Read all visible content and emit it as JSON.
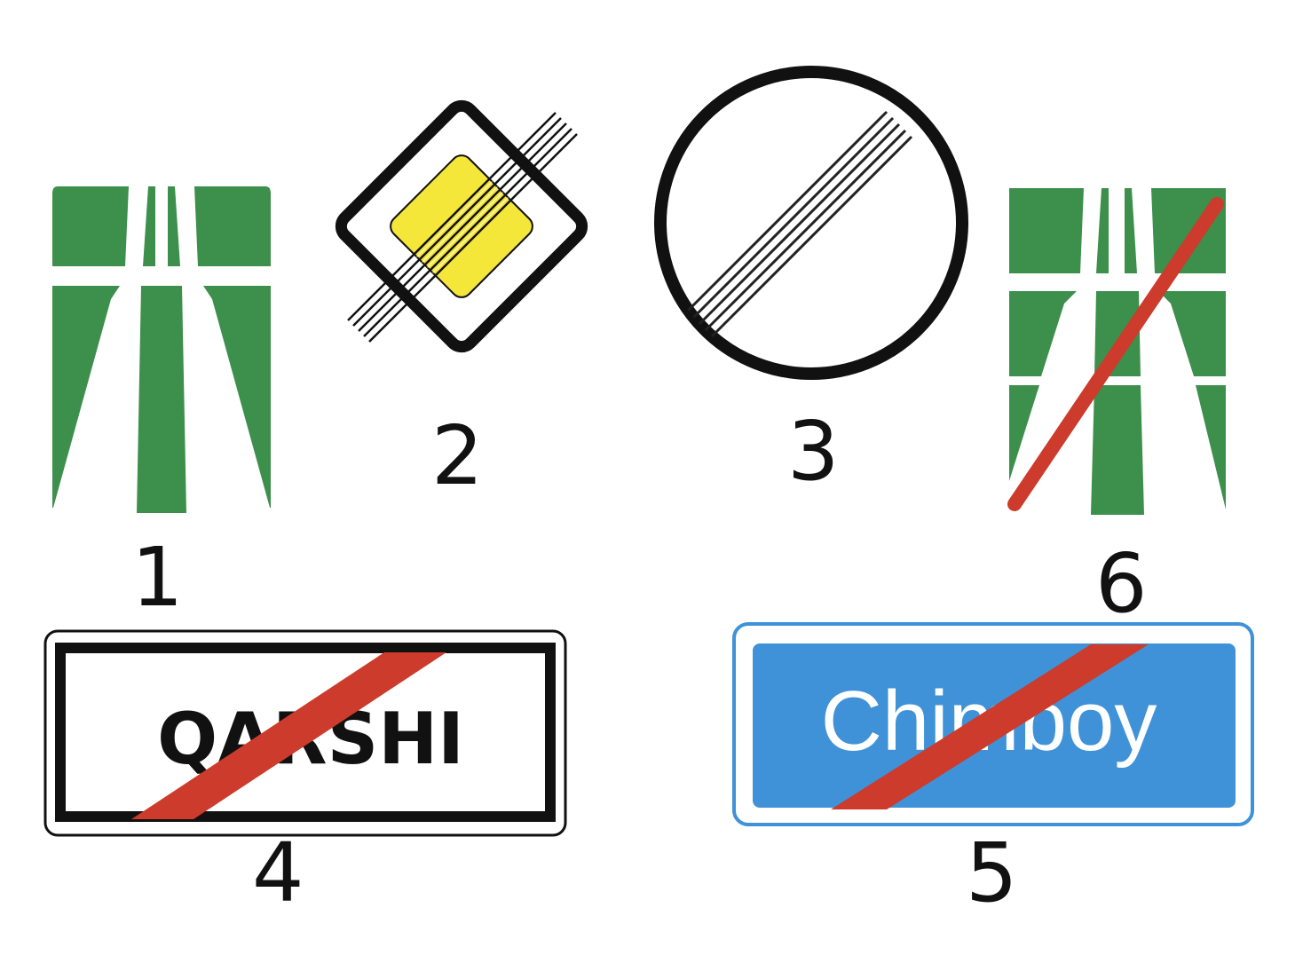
{
  "colors": {
    "motorway_green": "#3d8f4c",
    "priority_yellow": "#f5e63a",
    "cancel_red": "#cc3b2b",
    "locality_blue": "#3f92d8",
    "black": "#111111",
    "white": "#ffffff"
  },
  "signs": [
    {
      "number": "1",
      "icon": "motorway-icon"
    },
    {
      "number": "2",
      "icon": "end-of-main-road-icon"
    },
    {
      "number": "3",
      "icon": "end-of-all-restrictions-icon"
    },
    {
      "number": "4",
      "icon": "end-of-locality-white-icon",
      "text": "QARSHI"
    },
    {
      "number": "5",
      "icon": "end-of-locality-blue-icon",
      "text": "Chimboy"
    },
    {
      "number": "6",
      "icon": "end-of-motorway-icon"
    }
  ]
}
